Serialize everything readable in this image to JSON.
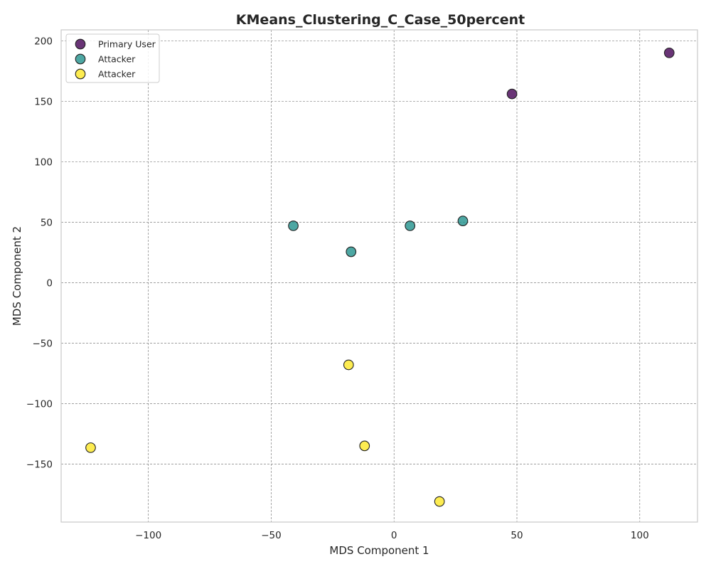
{
  "chart_data": {
    "type": "scatter",
    "title": "KMeans_Clustering_C_Case_50percent",
    "xlabel": "MDS Component 1",
    "ylabel": "MDS Component 2",
    "xlim": [
      -135.5,
      123.5
    ],
    "ylim": [
      -198,
      209
    ],
    "xticks": [
      -100,
      -50,
      0,
      50,
      100
    ],
    "yticks": [
      -150,
      -100,
      -50,
      0,
      50,
      100,
      150,
      200
    ],
    "grid": true,
    "legend_position": "top-left",
    "series": [
      {
        "name": "Primary User",
        "color": "#440154",
        "points": [
          {
            "x": 48,
            "y": 156
          },
          {
            "x": 112,
            "y": 190
          }
        ]
      },
      {
        "name": "Attacker",
        "color": "#21918c",
        "points": [
          {
            "x": -41,
            "y": 47
          },
          {
            "x": -17.5,
            "y": 25.5
          },
          {
            "x": 6.5,
            "y": 47
          },
          {
            "x": 28,
            "y": 51
          }
        ]
      },
      {
        "name": "Attacker",
        "color": "#fde725",
        "points": [
          {
            "x": -18.5,
            "y": -68
          },
          {
            "x": -12,
            "y": -135
          },
          {
            "x": 18.5,
            "y": -181
          },
          {
            "x": -123.5,
            "y": -136.5
          }
        ]
      }
    ]
  }
}
